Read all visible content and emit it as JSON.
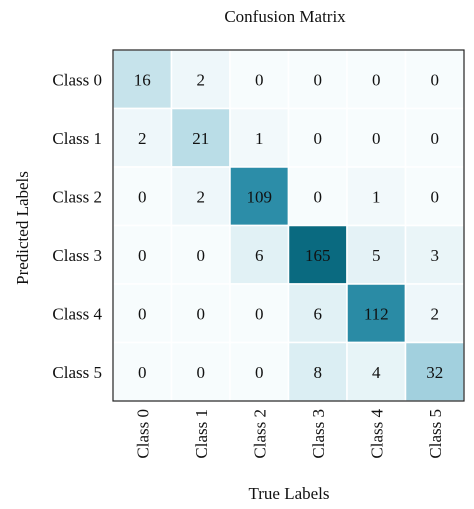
{
  "chart_data": {
    "type": "heatmap",
    "title": "Confusion Matrix",
    "xlabel": "True Labels",
    "ylabel": "Predicted Labels",
    "x_categories": [
      "Class 0",
      "Class 1",
      "Class 2",
      "Class 3",
      "Class 4",
      "Class 5"
    ],
    "y_categories": [
      "Class 0",
      "Class 1",
      "Class 2",
      "Class 3",
      "Class 4",
      "Class 5"
    ],
    "values": [
      [
        16,
        2,
        0,
        0,
        0,
        0
      ],
      [
        2,
        21,
        1,
        0,
        0,
        0
      ],
      [
        0,
        2,
        109,
        0,
        1,
        0
      ],
      [
        0,
        0,
        6,
        165,
        5,
        3
      ],
      [
        0,
        0,
        0,
        6,
        112,
        2
      ],
      [
        0,
        0,
        0,
        8,
        4,
        32
      ]
    ],
    "colormap": {
      "low": "#f7fcfd",
      "mid": "#3a9bb8",
      "high": "#0a6a80"
    }
  }
}
